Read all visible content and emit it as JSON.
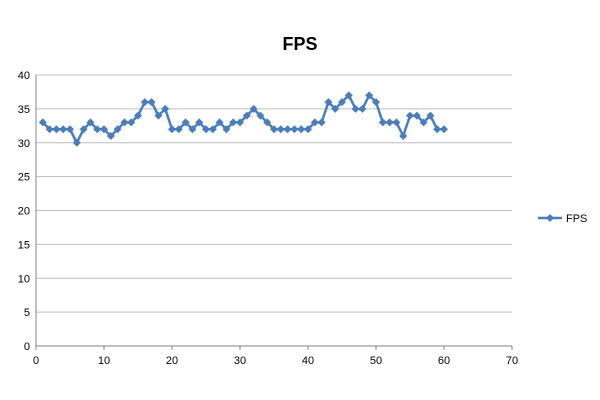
{
  "chart_data": {
    "type": "line",
    "title": "FPS",
    "xlabel": "",
    "ylabel": "",
    "xlim": [
      0,
      70
    ],
    "ylim": [
      0,
      40
    ],
    "x_ticks": [
      0,
      10,
      20,
      30,
      40,
      50,
      60,
      70
    ],
    "y_ticks": [
      0,
      5,
      10,
      15,
      20,
      25,
      30,
      35,
      40
    ],
    "grid": "horizontal",
    "legend": "right",
    "series": [
      {
        "name": "FPS",
        "color": "#4a7ebb",
        "marker": "diamond",
        "x": [
          1,
          2,
          3,
          4,
          5,
          6,
          7,
          8,
          9,
          10,
          11,
          12,
          13,
          14,
          15,
          16,
          17,
          18,
          19,
          20,
          21,
          22,
          23,
          24,
          25,
          26,
          27,
          28,
          29,
          30,
          31,
          32,
          33,
          34,
          35,
          36,
          37,
          38,
          39,
          40,
          41,
          42,
          43,
          44,
          45,
          46,
          47,
          48,
          49,
          50,
          51,
          52,
          53,
          54,
          55,
          56,
          57,
          58,
          59,
          60
        ],
        "values": [
          33,
          32,
          32,
          32,
          32,
          30,
          32,
          33,
          32,
          32,
          31,
          32,
          33,
          33,
          34,
          36,
          36,
          34,
          35,
          32,
          32,
          33,
          32,
          33,
          32,
          32,
          33,
          32,
          33,
          33,
          34,
          35,
          34,
          33,
          32,
          32,
          32,
          32,
          32,
          32,
          33,
          33,
          36,
          35,
          36,
          37,
          35,
          35,
          37,
          36,
          33,
          33,
          33,
          31,
          34,
          34,
          33,
          34,
          32,
          32
        ]
      }
    ]
  }
}
